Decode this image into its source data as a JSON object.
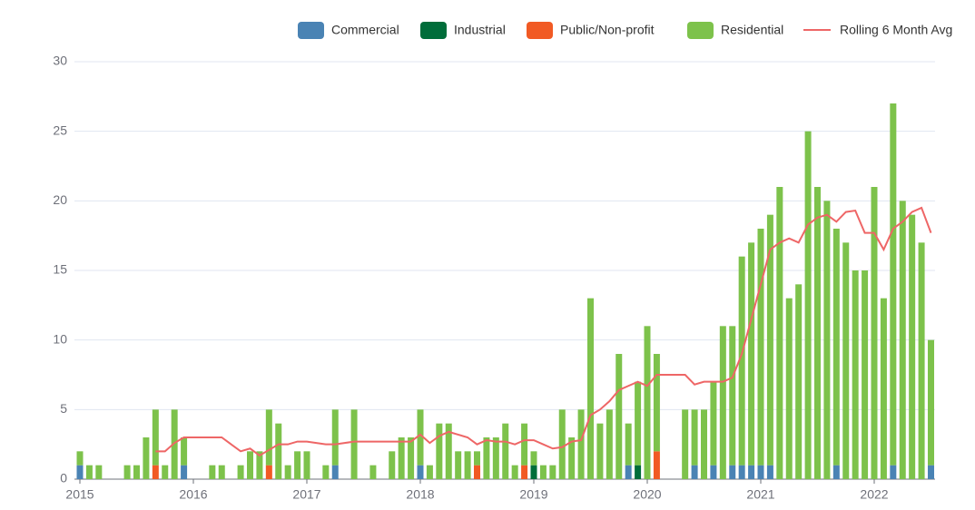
{
  "chart_data": {
    "type": "bar",
    "stacked": true,
    "categories": [
      "2015",
      null,
      null,
      null,
      null,
      null,
      null,
      null,
      null,
      null,
      null,
      null,
      "2016",
      null,
      null,
      null,
      null,
      null,
      null,
      null,
      null,
      null,
      null,
      null,
      "2017",
      null,
      null,
      null,
      null,
      null,
      null,
      null,
      null,
      null,
      null,
      null,
      "2018",
      null,
      null,
      null,
      null,
      null,
      null,
      null,
      null,
      null,
      null,
      null,
      "2019",
      null,
      null,
      null,
      null,
      null,
      null,
      null,
      null,
      null,
      null,
      null,
      "2020",
      null,
      null,
      null,
      null,
      null,
      null,
      null,
      null,
      null,
      null,
      null,
      "2021",
      null,
      null,
      null,
      null,
      null,
      null,
      null,
      null,
      null,
      null,
      null,
      "2022",
      null,
      null,
      null,
      null,
      null,
      null
    ],
    "series": [
      {
        "name": "Commercial",
        "color": "#4a83b4",
        "values": [
          1,
          0,
          0,
          0,
          0,
          0,
          0,
          0,
          0,
          0,
          0,
          1,
          0,
          0,
          0,
          0,
          0,
          0,
          0,
          0,
          0,
          0,
          0,
          0,
          0,
          0,
          0,
          1,
          0,
          0,
          0,
          0,
          0,
          0,
          0,
          0,
          1,
          0,
          0,
          0,
          0,
          0,
          0,
          0,
          0,
          0,
          0,
          0,
          0,
          0,
          0,
          0,
          0,
          0,
          0,
          0,
          0,
          0,
          1,
          0,
          0,
          0,
          0,
          0,
          0,
          1,
          0,
          1,
          0,
          1,
          1,
          1,
          1,
          1,
          0,
          0,
          0,
          0,
          0,
          0,
          1,
          0,
          0,
          0,
          0,
          0,
          1,
          0,
          0,
          0,
          1
        ]
      },
      {
        "name": "Industrial",
        "color": "#006d3a",
        "values": [
          0,
          0,
          0,
          0,
          0,
          0,
          0,
          0,
          0,
          0,
          0,
          0,
          0,
          0,
          0,
          0,
          0,
          0,
          0,
          0,
          0,
          0,
          0,
          0,
          0,
          0,
          0,
          0,
          0,
          0,
          0,
          0,
          0,
          0,
          0,
          0,
          0,
          0,
          0,
          0,
          0,
          0,
          0,
          0,
          0,
          0,
          0,
          0,
          1,
          0,
          0,
          0,
          0,
          0,
          0,
          0,
          0,
          0,
          0,
          1,
          0,
          0,
          0,
          0,
          0,
          0,
          0,
          0,
          0,
          0,
          0,
          0,
          0,
          0,
          0,
          0,
          0,
          0,
          0,
          0,
          0,
          0,
          0,
          0,
          0,
          0,
          0,
          0,
          0,
          0,
          0
        ]
      },
      {
        "name": "Public/Non-profit",
        "color": "#f15a24",
        "values": [
          0,
          0,
          0,
          0,
          0,
          0,
          0,
          0,
          1,
          0,
          0,
          0,
          0,
          0,
          0,
          0,
          0,
          0,
          0,
          0,
          1,
          0,
          0,
          0,
          0,
          0,
          0,
          0,
          0,
          0,
          0,
          0,
          0,
          0,
          0,
          0,
          0,
          0,
          0,
          0,
          0,
          0,
          1,
          0,
          0,
          0,
          0,
          1,
          0,
          0,
          0,
          0,
          0,
          0,
          0,
          0,
          0,
          0,
          0,
          0,
          0,
          2,
          0,
          0,
          0,
          0,
          0,
          0,
          0,
          0,
          0,
          0,
          0,
          0,
          0,
          0,
          0,
          0,
          0,
          0,
          0,
          0,
          0,
          0,
          0,
          0,
          0,
          0,
          0,
          0,
          0
        ]
      },
      {
        "name": "Residential",
        "color": "#7dc24b",
        "values": [
          1,
          1,
          1,
          0,
          0,
          1,
          1,
          3,
          4,
          1,
          5,
          2,
          0,
          0,
          1,
          1,
          0,
          1,
          2,
          2,
          4,
          4,
          1,
          2,
          2,
          0,
          1,
          4,
          0,
          5,
          0,
          1,
          0,
          2,
          3,
          3,
          4,
          1,
          4,
          4,
          2,
          2,
          1,
          3,
          3,
          4,
          1,
          3,
          1,
          1,
          1,
          5,
          3,
          5,
          13,
          4,
          5,
          9,
          3,
          6,
          11,
          7,
          0,
          0,
          5,
          4,
          5,
          6,
          11,
          10,
          15,
          16,
          17,
          18,
          21,
          13,
          14,
          25,
          21,
          20,
          17,
          17,
          15,
          15,
          21,
          13,
          26,
          20,
          19,
          17,
          9
        ]
      },
      {
        "name": "Rolling 6 Month Avg",
        "type": "line",
        "color": "#ee6666",
        "values": [
          null,
          null,
          null,
          null,
          null,
          null,
          null,
          null,
          2.0,
          2.0,
          2.6,
          3.0,
          3.0,
          3.0,
          3.0,
          3.0,
          2.5,
          2.0,
          2.2,
          1.7,
          2.1,
          2.5,
          2.5,
          2.7,
          2.7,
          2.6,
          2.5,
          2.5,
          2.6,
          2.7,
          2.7,
          2.7,
          2.7,
          2.7,
          2.7,
          2.7,
          3.2,
          2.6,
          3.1,
          3.4,
          3.2,
          3.0,
          2.5,
          2.8,
          2.7,
          2.7,
          2.5,
          2.8,
          2.8,
          2.5,
          2.2,
          2.3,
          2.7,
          2.8,
          4.6,
          5.0,
          5.6,
          6.4,
          6.7,
          7.0,
          6.7,
          7.5,
          7.5,
          7.5,
          7.5,
          6.8,
          7.0,
          7.0,
          7.0,
          7.3,
          9.0,
          11.5,
          14,
          16.5,
          17,
          17.3,
          17,
          18.3,
          18.8,
          19,
          18.5,
          19.2,
          19.3,
          17.7,
          17.7,
          16.5,
          18,
          18.5,
          19.2,
          19.5,
          17.7
        ]
      }
    ],
    "ylim": [
      0,
      30
    ],
    "yticks": [
      0,
      5,
      10,
      15,
      20,
      25,
      30
    ],
    "grid": true,
    "legend": "top-right"
  }
}
